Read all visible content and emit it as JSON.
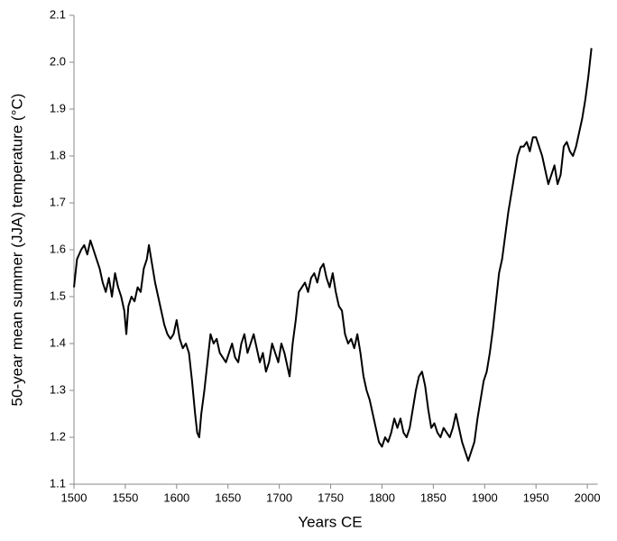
{
  "chart_data": {
    "type": "line",
    "xlabel": "Years CE",
    "ylabel": "50-year mean summer (JJA) temperature (°C)",
    "color": "#000000",
    "xlim": [
      1500,
      2010
    ],
    "xticks": [
      1500,
      1550,
      1600,
      1650,
      1700,
      1750,
      1800,
      1850,
      1900,
      1950,
      2000
    ],
    "ylim": [
      1.1,
      2.1
    ],
    "yticks": [
      1.1,
      1.2,
      1.3,
      1.4,
      1.5,
      1.6,
      1.7,
      1.8,
      1.9,
      {
        "value": 2,
        "label": "2.0"
      },
      2.1
    ],
    "grid": false,
    "x": [
      1500,
      1503,
      1507,
      1510,
      1513,
      1516,
      1519,
      1522,
      1525,
      1528,
      1531,
      1534,
      1537,
      1540,
      1543,
      1546,
      1549,
      1551,
      1553,
      1556,
      1559,
      1562,
      1565,
      1568,
      1571,
      1573,
      1576,
      1579,
      1582,
      1585,
      1588,
      1591,
      1594,
      1597,
      1600,
      1603,
      1606,
      1609,
      1612,
      1615,
      1618,
      1620,
      1622,
      1624,
      1627,
      1630,
      1633,
      1636,
      1639,
      1642,
      1645,
      1648,
      1651,
      1654,
      1657,
      1660,
      1663,
      1666,
      1669,
      1672,
      1675,
      1678,
      1681,
      1684,
      1687,
      1690,
      1693,
      1696,
      1699,
      1702,
      1705,
      1708,
      1710,
      1713,
      1716,
      1719,
      1722,
      1725,
      1728,
      1731,
      1734,
      1737,
      1740,
      1743,
      1746,
      1749,
      1752,
      1755,
      1758,
      1761,
      1764,
      1767,
      1770,
      1773,
      1776,
      1779,
      1782,
      1785,
      1788,
      1791,
      1794,
      1797,
      1800,
      1803,
      1806,
      1809,
      1812,
      1815,
      1818,
      1821,
      1824,
      1827,
      1830,
      1833,
      1836,
      1839,
      1842,
      1845,
      1848,
      1851,
      1854,
      1857,
      1860,
      1863,
      1866,
      1869,
      1872,
      1875,
      1878,
      1881,
      1884,
      1887,
      1890,
      1893,
      1896,
      1899,
      1902,
      1905,
      1908,
      1911,
      1914,
      1917,
      1920,
      1923,
      1926,
      1929,
      1932,
      1935,
      1938,
      1941,
      1944,
      1947,
      1950,
      1953,
      1956,
      1959,
      1962,
      1965,
      1968,
      1971,
      1974,
      1977,
      1980,
      1983,
      1986,
      1989,
      1992,
      1995,
      1998,
      2001,
      2004
    ],
    "values": [
      1.52,
      1.58,
      1.6,
      1.61,
      1.59,
      1.62,
      1.6,
      1.58,
      1.56,
      1.53,
      1.51,
      1.54,
      1.5,
      1.55,
      1.52,
      1.5,
      1.47,
      1.42,
      1.48,
      1.5,
      1.49,
      1.52,
      1.51,
      1.56,
      1.58,
      1.61,
      1.57,
      1.53,
      1.5,
      1.47,
      1.44,
      1.42,
      1.41,
      1.42,
      1.45,
      1.41,
      1.39,
      1.4,
      1.38,
      1.32,
      1.25,
      1.21,
      1.2,
      1.25,
      1.3,
      1.36,
      1.42,
      1.4,
      1.41,
      1.38,
      1.37,
      1.36,
      1.38,
      1.4,
      1.37,
      1.36,
      1.4,
      1.42,
      1.38,
      1.4,
      1.42,
      1.39,
      1.36,
      1.38,
      1.34,
      1.36,
      1.4,
      1.38,
      1.36,
      1.4,
      1.38,
      1.35,
      1.33,
      1.4,
      1.45,
      1.51,
      1.52,
      1.53,
      1.51,
      1.54,
      1.55,
      1.53,
      1.56,
      1.57,
      1.54,
      1.52,
      1.55,
      1.51,
      1.48,
      1.47,
      1.42,
      1.4,
      1.41,
      1.39,
      1.42,
      1.38,
      1.33,
      1.3,
      1.28,
      1.25,
      1.22,
      1.19,
      1.18,
      1.2,
      1.19,
      1.21,
      1.24,
      1.22,
      1.24,
      1.21,
      1.2,
      1.22,
      1.26,
      1.3,
      1.33,
      1.34,
      1.31,
      1.26,
      1.22,
      1.23,
      1.21,
      1.2,
      1.22,
      1.21,
      1.2,
      1.22,
      1.25,
      1.22,
      1.19,
      1.17,
      1.15,
      1.17,
      1.19,
      1.24,
      1.28,
      1.32,
      1.34,
      1.38,
      1.43,
      1.49,
      1.55,
      1.58,
      1.63,
      1.68,
      1.72,
      1.76,
      1.8,
      1.82,
      1.82,
      1.83,
      1.81,
      1.84,
      1.84,
      1.82,
      1.8,
      1.77,
      1.74,
      1.76,
      1.78,
      1.74,
      1.76,
      1.82,
      1.83,
      1.81,
      1.8,
      1.82,
      1.85,
      1.88,
      1.92,
      1.97,
      2.03
    ]
  }
}
